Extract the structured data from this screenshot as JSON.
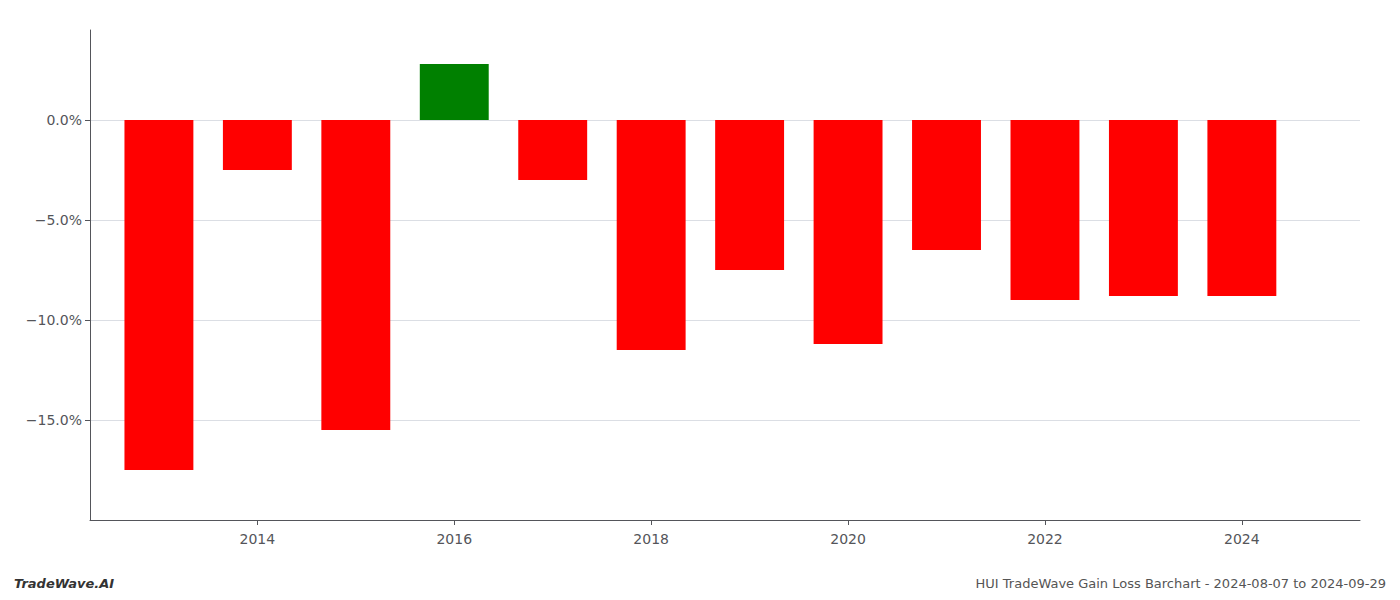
{
  "chart_data": {
    "type": "bar",
    "x": [
      2013,
      2014,
      2015,
      2016,
      2017,
      2018,
      2019,
      2020,
      2021,
      2022,
      2023,
      2024
    ],
    "values": [
      -17.5,
      -2.5,
      -15.5,
      2.8,
      -3.0,
      -11.5,
      -7.5,
      -11.2,
      -6.5,
      -9.0,
      -8.8,
      -8.8
    ],
    "colors": [
      "#ff0000",
      "#ff0000",
      "#ff0000",
      "#008000",
      "#ff0000",
      "#ff0000",
      "#ff0000",
      "#ff0000",
      "#ff0000",
      "#ff0000",
      "#ff0000",
      "#ff0000"
    ],
    "xlim": [
      2012.3,
      2025.2
    ],
    "xticks": [
      2014,
      2016,
      2018,
      2020,
      2022,
      2024
    ],
    "ylim": [
      -20,
      4.5
    ],
    "yticks": [
      {
        "value": 0.0,
        "label": "0.0%"
      },
      {
        "value": -5.0,
        "label": "−5.0%"
      },
      {
        "value": -10.0,
        "label": "−10.0%"
      },
      {
        "value": -15.0,
        "label": "−15.0%"
      }
    ],
    "grid": true,
    "annotations": [
      "TradeWave.AI",
      "HUI TradeWave Gain Loss Barchart - 2024-08-07 to 2024-09-29"
    ]
  }
}
